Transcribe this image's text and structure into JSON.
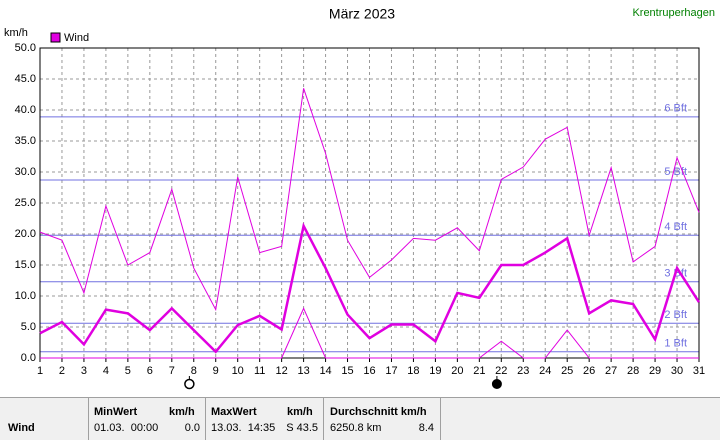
{
  "chart_data": {
    "type": "line",
    "title": "März 2023",
    "station": "Krentruperhagen",
    "y_label": "km/h",
    "legend": "Wind",
    "x": [
      1,
      2,
      3,
      4,
      5,
      6,
      7,
      8,
      9,
      10,
      11,
      12,
      13,
      14,
      15,
      16,
      17,
      18,
      19,
      20,
      21,
      22,
      23,
      24,
      25,
      26,
      27,
      28,
      29,
      30,
      31
    ],
    "series": [
      {
        "color": "#e000e0",
        "width": 1,
        "values": [
          20.3,
          19.0,
          10.5,
          24.5,
          15.0,
          17.0,
          27.2,
          14.5,
          7.8,
          29.2,
          17.0,
          18.0,
          43.5,
          33.0,
          19.0,
          13.0,
          15.8,
          19.3,
          19.0,
          21.0,
          17.3,
          28.8,
          30.8,
          35.3,
          37.2,
          19.8,
          30.7,
          15.5,
          18.0,
          32.3,
          23.5
        ]
      },
      {
        "name": "Wind",
        "color": "#e000e0",
        "width": 2.5,
        "values": [
          4.0,
          5.8,
          2.2,
          7.8,
          7.2,
          4.5,
          8.0,
          4.5,
          1.0,
          5.3,
          6.8,
          4.6,
          21.3,
          14.5,
          7.0,
          3.2,
          5.4,
          5.4,
          2.7,
          10.5,
          9.7,
          15.0,
          15.0,
          17.0,
          19.3,
          7.2,
          9.3,
          8.7,
          3.0,
          14.5,
          9.0
        ]
      },
      {
        "color": "#e000e0",
        "width": 1,
        "values": [
          0,
          0,
          0,
          0,
          0,
          0,
          0,
          0,
          0,
          0,
          0,
          0,
          8.0,
          0,
          0,
          0,
          0,
          0,
          0,
          0,
          0,
          2.7,
          0,
          0,
          4.5,
          0,
          0,
          0,
          0,
          0,
          0
        ]
      }
    ],
    "xlim": [
      1,
      31
    ],
    "xticks": [
      1,
      2,
      3,
      4,
      5,
      6,
      7,
      8,
      9,
      10,
      11,
      12,
      13,
      14,
      15,
      16,
      17,
      18,
      19,
      20,
      21,
      22,
      23,
      24,
      25,
      26,
      27,
      28,
      29,
      30,
      31
    ],
    "ylim": [
      0,
      50
    ],
    "yticks": [
      {
        "value": 0,
        "label": "0.0"
      },
      {
        "value": 5,
        "label": "5.0"
      },
      {
        "value": 10,
        "label": "10.0"
      },
      {
        "value": 15,
        "label": "15.0"
      },
      {
        "value": 20,
        "label": "20.0"
      },
      {
        "value": 25,
        "label": "25.0"
      },
      {
        "value": 30,
        "label": "30.0"
      },
      {
        "value": 35,
        "label": "35.0"
      },
      {
        "value": 40,
        "label": "40.0"
      },
      {
        "value": 45,
        "label": "45.0"
      },
      {
        "value": 50,
        "label": "50.0"
      }
    ],
    "grid": true,
    "beaufort": [
      {
        "value": 1.0,
        "label": "1 Bft"
      },
      {
        "value": 5.6,
        "label": "2 Bft"
      },
      {
        "value": 12.3,
        "label": "3 Bft"
      },
      {
        "value": 19.8,
        "label": "4 Bft"
      },
      {
        "value": 28.7,
        "label": "5 Bft"
      },
      {
        "value": 38.9,
        "label": "6 Bft"
      }
    ],
    "full_moon_x": 7.8,
    "new_moon_x": 21.8
  },
  "table": {
    "label": "Wind",
    "min": {
      "header": "MinWert",
      "unit": "km/h",
      "time": "01.03.  00:00",
      "value": "0.0"
    },
    "max": {
      "header": "MaxWert",
      "unit": "km/h",
      "time": "13.03.  14:35",
      "value": "S 43.5"
    },
    "avg": {
      "header": "Durchschnitt km/h",
      "distance": "6250.8 km",
      "value": "8.4"
    }
  }
}
